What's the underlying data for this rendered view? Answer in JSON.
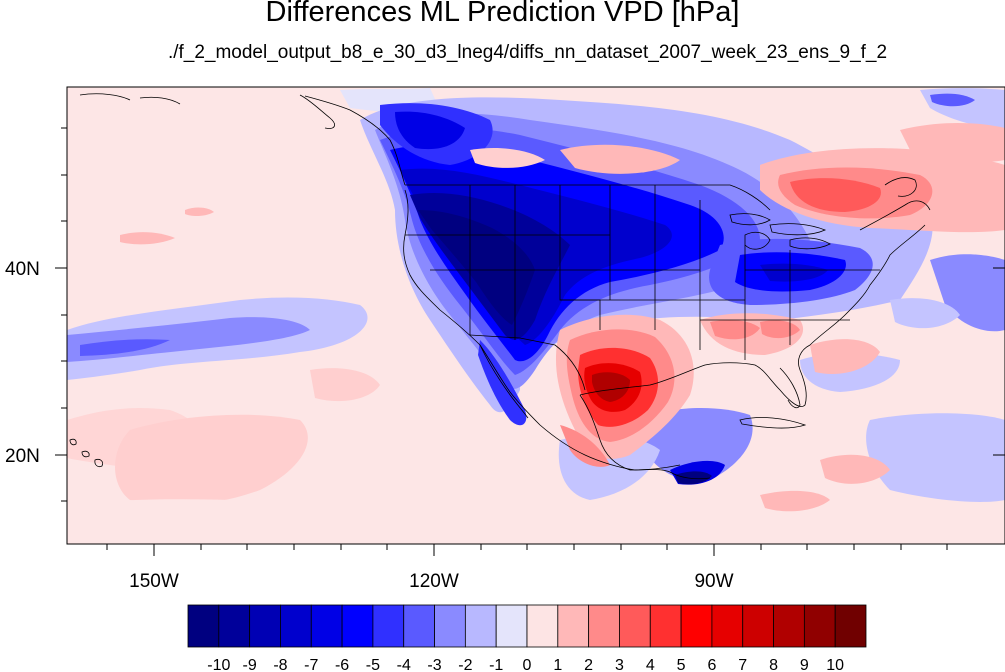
{
  "title": "Differences ML Prediction VPD [hPa]",
  "subtitle": "./f_2_model_output_b8_e_30_d3_lneg4/diffs_nn_dataset_2007_week_23_ens_9_f_2",
  "y_ticks": [
    {
      "label": "40N",
      "lat": 40
    },
    {
      "label": "20N",
      "lat": 20
    }
  ],
  "x_ticks": [
    {
      "label": "150W",
      "lon": -150
    },
    {
      "label": "120W",
      "lon": -120
    },
    {
      "label": "90W",
      "lon": -90
    }
  ],
  "colorbar": {
    "labels": [
      "-10",
      "-9",
      "-8",
      "-7",
      "-6",
      "-5",
      "-4",
      "-3",
      "-2",
      "-1",
      "0",
      "1",
      "2",
      "3",
      "4",
      "5",
      "6",
      "7",
      "8",
      "9",
      "10"
    ],
    "colors": [
      "#000080",
      "#00009a",
      "#0000b4",
      "#0000cd",
      "#0000e6",
      "#0000ff",
      "#3030ff",
      "#5a5aff",
      "#8a8aff",
      "#b8b8ff",
      "#e4e4fb",
      "#fde4e4",
      "#ffb8b8",
      "#ff8a8a",
      "#ff5a5a",
      "#ff3030",
      "#ff0000",
      "#e60000",
      "#cd0000",
      "#b00000",
      "#900000",
      "#700000"
    ]
  }
}
